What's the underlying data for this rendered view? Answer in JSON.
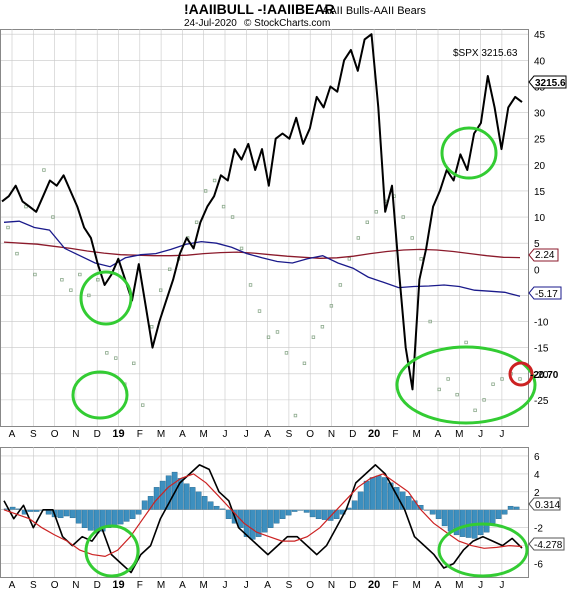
{
  "header": {
    "symbol": "!AAIIBULL -!AAIIBEAR",
    "description": "AAII Bulls-AAII Bears",
    "date": "24-Jul-2020",
    "source": "© StockCharts.com"
  },
  "overlay_label": "$SPX 3215.63",
  "price_tags": {
    "spx": "3215.6",
    "ma_long": "2.24",
    "ma_short": "-5.17",
    "last": "-20.70",
    "hist_value": "0.314",
    "macd_value": "-4.278"
  },
  "colors": {
    "spx_line": "#000000",
    "dots": "#8aa88a",
    "ma_long": "#8b1a2b",
    "ma_short": "#1a1a8b",
    "histogram": "#3d8fbf",
    "macd_signal": "#cc2222",
    "highlight_circle": "#33cc33",
    "current_circle": "#cc2222",
    "grid": "#c8c8c8"
  },
  "chart_data": [
    {
      "type": "line",
      "panel": "main",
      "y_axis_ticks": [
        "45",
        "40",
        "35",
        "30",
        "25",
        "20",
        "15",
        "10",
        "5",
        "0",
        "-5",
        "-10",
        "-15",
        "-20",
        "-25"
      ],
      "ylim": [
        -30,
        46
      ],
      "x_month_labels": [
        "A",
        "S",
        "O",
        "N",
        "D",
        "19",
        "F",
        "M",
        "A",
        "M",
        "J",
        "J",
        "A",
        "S",
        "O",
        "N",
        "D",
        "20",
        "F",
        "M",
        "A",
        "M",
        "J",
        "J"
      ],
      "series": [
        {
          "name": "$SPX",
          "values": [
            13,
            14,
            16,
            13,
            12,
            11,
            14,
            17,
            16,
            18,
            15,
            12,
            8,
            6,
            1,
            -3,
            -1,
            2,
            -2,
            -6,
            1,
            -7,
            -15,
            -10,
            -6,
            -2,
            3,
            6,
            4,
            9,
            12,
            14,
            18,
            17,
            23,
            21,
            24,
            19,
            23,
            16,
            25,
            26,
            25,
            29,
            24,
            27,
            33,
            31,
            35,
            34,
            40,
            42,
            38,
            44,
            45,
            31,
            11,
            16,
            0,
            -15,
            -23,
            -2,
            4,
            12,
            15,
            19,
            17,
            22,
            19,
            26,
            28,
            37,
            31,
            23,
            31,
            33,
            32
          ]
        },
        {
          "name": "AAII Bulls-AAII Bears",
          "values": [
            8,
            3,
            12,
            -1,
            19,
            10,
            -2,
            -4,
            -1,
            -5,
            -2,
            -16,
            -17,
            -22,
            -18,
            -26,
            -11,
            -4,
            0,
            2,
            6,
            9,
            15,
            17,
            12,
            10,
            4,
            -3,
            -8,
            -13,
            -12,
            -16,
            -28,
            -18,
            -13,
            -11,
            -7,
            -3,
            2,
            6,
            9,
            11,
            13,
            14,
            10,
            6,
            2,
            -10,
            -23,
            -21,
            -24,
            -14,
            -27,
            -25,
            -22,
            -21,
            -20,
            -21
          ]
        },
        {
          "name": "MA long",
          "values": [
            5.2,
            5.0,
            4.8,
            4.4,
            4.0,
            3.5,
            3.1,
            2.8,
            2.7,
            2.6,
            2.6,
            2.7,
            3.0,
            3.2,
            3.3,
            3.1,
            2.8,
            2.5,
            2.3,
            2.1,
            2.2,
            2.5,
            3.0,
            3.4,
            3.7,
            3.8,
            3.7,
            3.4,
            3.0,
            2.6,
            2.3,
            2.24
          ]
        },
        {
          "name": "MA short",
          "values": [
            9.0,
            9.2,
            8.0,
            7.5,
            4.0,
            2.6,
            1.2,
            0.5,
            2.2,
            2.8,
            3.0,
            3.8,
            4.8,
            5.3,
            5.0,
            4.2,
            3.0,
            2.2,
            1.5,
            1.2,
            2.0,
            2.6,
            1.2,
            0.2,
            -1.5,
            -2.5,
            -3.5,
            -3.3,
            -3.2,
            -3.0,
            -3.3,
            -4.0,
            -4.2,
            -4.4,
            -5.17
          ]
        }
      ]
    },
    {
      "type": "bar",
      "panel": "lower",
      "y_axis_ticks": [
        "6",
        "4",
        "2",
        "-2",
        "-4",
        "-6"
      ],
      "ylim": [
        -7.5,
        7
      ],
      "series": [
        {
          "name": "Histogram",
          "values": [
            0.1,
            0.3,
            0.1,
            -0.5,
            -0.2,
            -0.2,
            0.0,
            -0.5,
            -0.8,
            -0.9,
            -0.7,
            -0.9,
            -1.5,
            -2.0,
            -2.3,
            -2.6,
            -2.4,
            -2.0,
            -1.8,
            -1.6,
            -1.3,
            -1.0,
            -0.5,
            1.0,
            1.5,
            2.5,
            3.2,
            3.8,
            4.2,
            3.5,
            2.9,
            2.5,
            2.0,
            1.5,
            0.9,
            0.4,
            0.1,
            -1.0,
            -1.5,
            -2.0,
            -3.0,
            -3.3,
            -3.0,
            -2.5,
            -2.0,
            -1.5,
            -1.0,
            -0.6,
            -0.2,
            0.0,
            -0.3,
            -0.8,
            -1.0,
            -1.1,
            -1.2,
            -1.0,
            -0.5,
            0.2,
            1.0,
            2.0,
            3.2,
            3.6,
            3.8,
            3.6,
            3.0,
            2.5,
            2.0,
            1.5,
            1.0,
            0.5,
            0.0,
            -0.5,
            -1.0,
            -1.8,
            -2.4,
            -2.8,
            -3.0,
            -3.1,
            -3.2,
            -2.8,
            -2.5,
            -1.5,
            -1.0,
            -0.5,
            0.4,
            0.314
          ]
        },
        {
          "name": "MACD",
          "values": [
            1,
            -1,
            0.5,
            -2,
            0,
            0,
            -3,
            -4,
            -3,
            -3.5,
            -2,
            -5,
            -6,
            -7,
            -5,
            -4,
            -1,
            1,
            3,
            4,
            5,
            4.5,
            2,
            1,
            -2,
            -3,
            -4,
            -5,
            -4,
            -3,
            -3,
            -4,
            -5,
            -4,
            -2,
            0,
            3,
            4,
            5,
            4,
            2,
            0,
            -3,
            -4,
            -5,
            -6.5,
            -6,
            -4.5,
            -3.5,
            -3,
            -3.5,
            -4,
            -3.2,
            -4.278
          ]
        },
        {
          "name": "Signal",
          "values": [
            0,
            -0.5,
            -1,
            -2,
            -2.8,
            -3.5,
            -4.5,
            -5,
            -5.2,
            -4.5,
            -3,
            -1,
            1,
            2.5,
            3.5,
            4,
            3,
            1.5,
            0,
            -1.5,
            -2.5,
            -3,
            -3.5,
            -3.5,
            -3,
            -2,
            -0.5,
            1,
            2.5,
            3.5,
            4,
            3,
            2,
            0,
            -1.5,
            -2.5,
            -3.5,
            -4,
            -4.3,
            -4.2,
            -4,
            -4.1
          ]
        }
      ]
    }
  ]
}
